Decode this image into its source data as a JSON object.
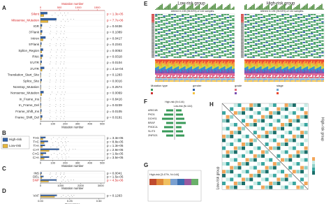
{
  "legend": {
    "items": [
      {
        "name": "High-risk",
        "color": "#2f5fa7"
      },
      {
        "name": "Low-risk",
        "color": "#e6b53a"
      }
    ]
  },
  "highlight_color": "#d62728",
  "panel_a": {
    "letter": "A",
    "top_axis_label": "Mutation number",
    "top_lim": [
      0,
      1700
    ],
    "top_ticks": [
      0,
      500,
      1000,
      1500
    ],
    "axis_label": "Mutation number",
    "xlim": [
      0,
      520
    ],
    "xticks": [
      0,
      100,
      200,
      300,
      400,
      500
    ],
    "highlight_rows": [
      0,
      1
    ],
    "rows": [
      {
        "label": "Silent",
        "p": "p = 1.3e-05",
        "high": 180,
        "low": 90
      },
      {
        "label": "Missense_Mutation",
        "p": "p = 7.7e-06",
        "high": 420,
        "low": 200
      },
      {
        "label": "IGR",
        "p": "p = 0.0436",
        "high": 12,
        "low": 6
      },
      {
        "label": "3'Flank",
        "p": "p = 0.1089",
        "high": 14,
        "low": 8
      },
      {
        "label": "Intron",
        "p": "p = 0.0417",
        "high": 40,
        "low": 20
      },
      {
        "label": "5'Flank",
        "p": "p = 0.2341",
        "high": 8,
        "low": 5
      },
      {
        "label": "Splice_Region",
        "p": "p = 0.0053",
        "high": 20,
        "low": 10
      },
      {
        "label": "RNA",
        "p": "p = 0.0318",
        "high": 18,
        "low": 9
      },
      {
        "label": "5'UTR",
        "p": "p = 0.0104",
        "high": 10,
        "low": 5
      },
      {
        "label": "3'UTR",
        "p": "p = 4.1e-04",
        "high": 30,
        "low": 12
      },
      {
        "label": "Translation_Start_Site",
        "p": "p = 0.1283",
        "high": 3,
        "low": 2
      },
      {
        "label": "Splice_Site",
        "p": "p = 0.0016",
        "high": 9,
        "low": 4
      },
      {
        "label": "Nonstop_Mutation",
        "p": "p = 0.2574",
        "high": 2,
        "low": 1
      },
      {
        "label": "Nonsense_Mutation",
        "p": "p = 0.0069",
        "high": 25,
        "low": 11
      },
      {
        "label": "In_Frame_Ins",
        "p": "p = 0.8416",
        "high": 2,
        "low": 2
      },
      {
        "label": "In_Frame_Del",
        "p": "p = 0.0239",
        "high": 5,
        "low": 3
      },
      {
        "label": "Frame_Shift_Ins",
        "p": "p = 0.0105",
        "high": 8,
        "low": 4
      },
      {
        "label": "Frame_Shift_Del",
        "p": "p = 0.0191",
        "high": 14,
        "low": 7
      }
    ]
  },
  "panel_b": {
    "letter": "B",
    "axis_label": "Mutation number",
    "xlim": [
      0,
      520
    ],
    "xticks": [
      0,
      100,
      200,
      300,
      400,
      500
    ],
    "highlight_rows": [],
    "rows": [
      {
        "label": "T>G",
        "p": "p = 3.3e-05",
        "high": 40,
        "low": 20
      },
      {
        "label": "T>C",
        "p": "p = 8.8e-05",
        "high": 60,
        "low": 30
      },
      {
        "label": "T>A",
        "p": "p = 1.3e-05",
        "high": 35,
        "low": 15
      },
      {
        "label": "C>T",
        "p": "p = 2.9e-05",
        "high": 150,
        "low": 70
      },
      {
        "label": "C>G",
        "p": "p = 1.6e-05",
        "high": 45,
        "low": 20
      },
      {
        "label": "C>A",
        "p": "p = 3.5e-05",
        "high": 70,
        "low": 30
      }
    ]
  },
  "panel_c": {
    "letter": "C",
    "axis_label": "Mutation number",
    "xlim": [
      0,
      3200
    ],
    "xticks": [
      0,
      1000,
      2000,
      3000
    ],
    "highlight_rows": [
      2
    ],
    "rows": [
      {
        "label": "INS",
        "p": "p = 0.0041",
        "high": 60,
        "low": 30
      },
      {
        "label": "DEL",
        "p": "p = 1.5e-05",
        "high": 150,
        "low": 70
      },
      {
        "label": "SNP",
        "p": "p = 4.5e-06",
        "high": 800,
        "low": 400
      }
    ]
  },
  "panel_d": {
    "letter": "D",
    "axis_label": "Percentage",
    "xlim": [
      0,
      0.55
    ],
    "xticks": [
      {
        "value": 0,
        "label": "0.00"
      },
      {
        "value": 0.25,
        "label": "0.25"
      },
      {
        "value": 0.5,
        "label": "0.50"
      }
    ],
    "highlight_rows": [],
    "rows": [
      {
        "label": "VAF",
        "p": "p = 0.1263",
        "high": 0.14,
        "low": 0.12
      }
    ]
  },
  "panel_e": {
    "letter": "E",
    "left_title": "Low-risk group",
    "right_title": "High-risk group",
    "left_note": "Altered in 139 (96.53%) of 144 samples.",
    "right_note": "Altered in 139 (96.53%) of 144 samples.",
    "legends": [
      "Mutation type",
      "gender",
      "grade",
      "stage"
    ]
  },
  "panel_f": {
    "letter": "F",
    "left_title": "High-risk (N=144)",
    "right_title": "Low-risk (N=144)",
    "genes": [
      "ARID1B",
      "PKD1",
      "DCHS1",
      "BRAF",
      "PIK3CA",
      "SLIT3",
      "ZNF521"
    ]
  },
  "panel_g": {
    "letter": "G",
    "title": "High-risk [3.47%, N=144]"
  },
  "panel_h": {
    "letter": "H",
    "top_label": "High-risk group",
    "bottom_label": "Low-risk group"
  }
}
